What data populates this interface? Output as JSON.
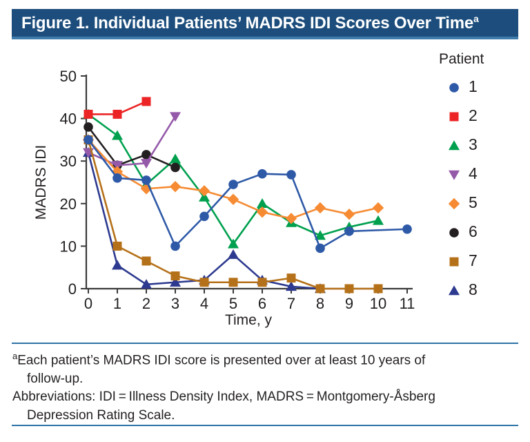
{
  "title": {
    "text": "Figure 1. Individual Patients’ MADRS IDI Scores Over Time",
    "superscript": "a"
  },
  "footnote": {
    "superscript": "a",
    "line1": "Each patient’s MADRS IDI score is presented over at least 10 years of",
    "line2": "follow-up.",
    "line3": "Abbreviations: IDI = Illness Density Index, MADRS = Montgomery-Åsberg",
    "line4": "Depression Rating Scale."
  },
  "colors": {
    "banner_bg": "#1c4d7c",
    "banner_edge": "#3d7cab",
    "rule": "#2d73a6",
    "axis": "#3a3a3a",
    "text": "#231f20"
  },
  "chart_data": {
    "type": "line",
    "xlabel": "Time, y",
    "ylabel": "MADRS IDI",
    "xlim": [
      0,
      11
    ],
    "ylim": [
      0,
      50
    ],
    "x_ticks": [
      0,
      1,
      2,
      3,
      4,
      5,
      6,
      7,
      8,
      9,
      10,
      11
    ],
    "y_ticks": [
      0,
      10,
      20,
      30,
      40,
      50
    ],
    "grid": false,
    "legend_title": "Patient",
    "legend_position": "right",
    "series": [
      {
        "name": "1",
        "marker": "circle",
        "color": "#2e59a7",
        "x": [
          0,
          1,
          2,
          3,
          4,
          5,
          6,
          7,
          8,
          9,
          11
        ],
        "y": [
          35,
          26,
          25.5,
          10,
          17,
          24.5,
          27,
          26.8,
          9.5,
          13.5,
          14
        ]
      },
      {
        "name": "2",
        "marker": "square",
        "color": "#ec2426",
        "x": [
          0,
          1,
          2
        ],
        "y": [
          41,
          41,
          44
        ]
      },
      {
        "name": "3",
        "marker": "triangle-up",
        "color": "#00a04e",
        "x": [
          0,
          1,
          2,
          3,
          4,
          5,
          6,
          7,
          8,
          9,
          10
        ],
        "y": [
          41,
          36,
          24.5,
          30.5,
          21.5,
          10.5,
          20,
          15.5,
          12.5,
          14.5,
          16
        ]
      },
      {
        "name": "4",
        "marker": "triangle-down",
        "color": "#9559a9",
        "x": [
          0,
          1,
          2,
          3
        ],
        "y": [
          32,
          29,
          29.5,
          40.5
        ]
      },
      {
        "name": "5",
        "marker": "diamond",
        "color": "#f68b33",
        "x": [
          0,
          1,
          2,
          3,
          4,
          5,
          6,
          7,
          8,
          9,
          10
        ],
        "y": [
          35,
          27.5,
          23.5,
          24,
          23,
          21,
          18,
          16.5,
          19,
          17.5,
          19
        ]
      },
      {
        "name": "6",
        "marker": "circle",
        "color": "#231f20",
        "x": [
          0,
          1,
          2,
          3
        ],
        "y": [
          38,
          29,
          31.5,
          28.5
        ]
      },
      {
        "name": "7",
        "marker": "square",
        "color": "#b57119",
        "x": [
          0,
          1,
          2,
          3,
          4,
          5,
          6,
          7,
          8,
          9,
          10
        ],
        "y": [
          35,
          10,
          6.5,
          3,
          1.5,
          1.5,
          1.5,
          2.5,
          0,
          0,
          0
        ]
      },
      {
        "name": "8",
        "marker": "triangle-up",
        "color": "#2d3a8f",
        "x": [
          0,
          1,
          2,
          3,
          4,
          5,
          6,
          7,
          8
        ],
        "y": [
          32,
          5.5,
          1,
          1.5,
          2,
          8,
          2,
          0.5,
          0
        ]
      }
    ],
    "draw_order": [
      2,
      5,
      7,
      3,
      4,
      6,
      0,
      1
    ]
  }
}
